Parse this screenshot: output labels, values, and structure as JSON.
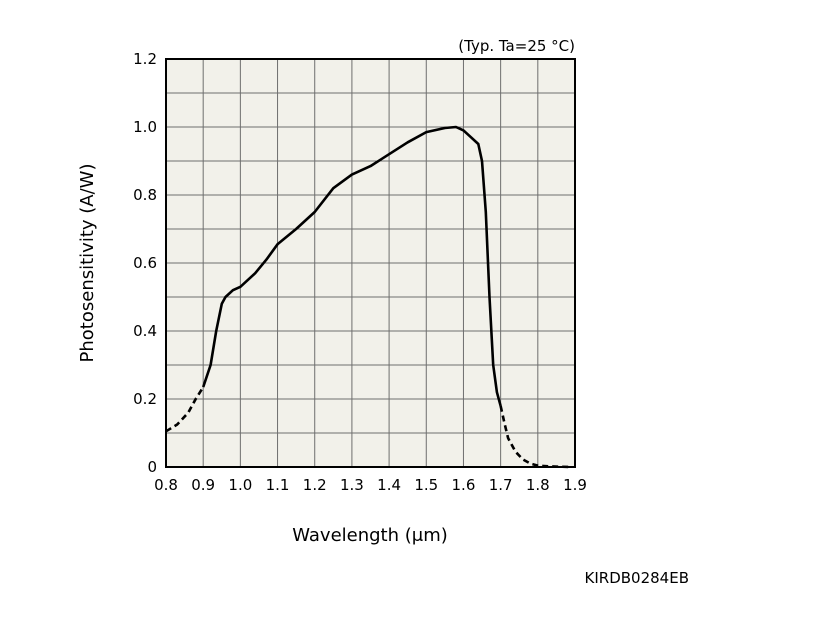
{
  "chart_data": {
    "type": "line",
    "title": "",
    "condition_note": "(Typ. Ta=25 °C)",
    "xlabel": "Wavelength (μm)",
    "ylabel": "Photosensitivity (A/W)",
    "xlim": [
      0.8,
      1.9
    ],
    "ylim": [
      0,
      1.2
    ],
    "x_ticks": [
      0.8,
      0.9,
      1.0,
      1.1,
      1.2,
      1.3,
      1.4,
      1.5,
      1.6,
      1.7,
      1.8,
      1.9
    ],
    "x_tick_labels": [
      "0.8",
      "0.9",
      "1.0",
      "1.1",
      "1.2",
      "1.3",
      "1.4",
      "1.5",
      "1.6",
      "1.7",
      "1.8",
      "1.9"
    ],
    "y_ticks": [
      0,
      0.2,
      0.4,
      0.6,
      0.8,
      1.0,
      1.2
    ],
    "y_tick_labels": [
      "0",
      "0.2",
      "0.4",
      "0.6",
      "0.8",
      "1.0",
      "1.2"
    ],
    "grid": true,
    "series": [
      {
        "style": "dashed",
        "x": [
          0.8,
          0.83,
          0.86,
          0.88,
          0.9
        ],
        "y": [
          0.105,
          0.125,
          0.16,
          0.2,
          0.235
        ]
      },
      {
        "style": "solid",
        "x": [
          0.9,
          0.92,
          0.935,
          0.95,
          0.96,
          0.98,
          1.0,
          1.04,
          1.07,
          1.1,
          1.15,
          1.2,
          1.25,
          1.3,
          1.35,
          1.4,
          1.45,
          1.5,
          1.55,
          1.58,
          1.6,
          1.62,
          1.64,
          1.65,
          1.66,
          1.67,
          1.68,
          1.69,
          1.7
        ],
        "y": [
          0.235,
          0.3,
          0.4,
          0.48,
          0.5,
          0.52,
          0.53,
          0.57,
          0.61,
          0.655,
          0.7,
          0.75,
          0.82,
          0.86,
          0.885,
          0.92,
          0.955,
          0.985,
          0.997,
          1.0,
          0.99,
          0.97,
          0.95,
          0.9,
          0.75,
          0.5,
          0.3,
          0.22,
          0.18
        ]
      },
      {
        "style": "dashed",
        "x": [
          1.7,
          1.71,
          1.72,
          1.74,
          1.76,
          1.78,
          1.8,
          1.83,
          1.86,
          1.89
        ],
        "y": [
          0.18,
          0.13,
          0.085,
          0.045,
          0.022,
          0.01,
          0.004,
          0.002,
          0.001,
          0.0
        ]
      }
    ]
  },
  "figure_code": "KIRDB0284EB"
}
